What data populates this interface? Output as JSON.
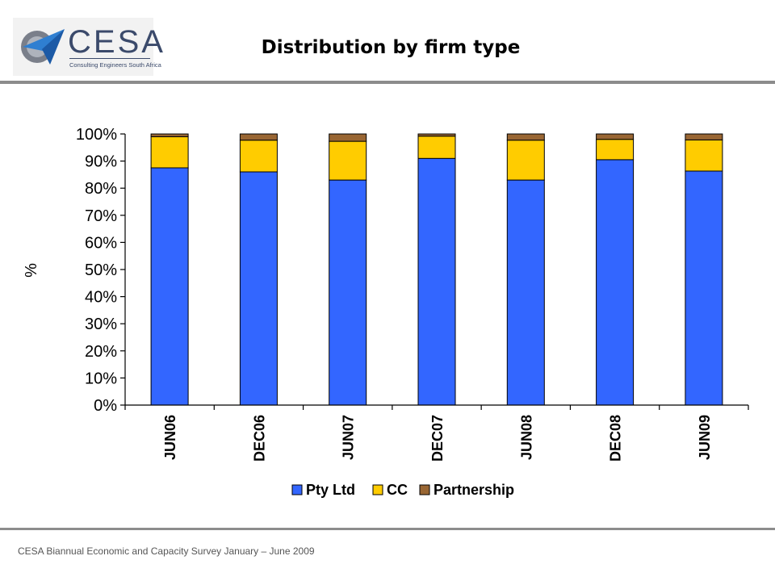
{
  "header": {
    "title": "Distribution by firm type",
    "logo": {
      "name": "CESA",
      "tagline": "Consulting Engineers South Africa"
    }
  },
  "footer": {
    "text": "CESA Biannual Economic and Capacity Survey January – June 2009"
  },
  "colors": {
    "pty_ltd": "#3366ff",
    "cc": "#ffcc00",
    "partnership": "#996633",
    "rule": "#8c8c8c"
  },
  "chart_data": {
    "type": "bar",
    "stacked": true,
    "categories": [
      "JUN06",
      "DEC06",
      "JUN07",
      "DEC07",
      "JUN08",
      "DEC08",
      "JUN09"
    ],
    "series": [
      {
        "name": "Pty Ltd",
        "values": [
          87.5,
          86,
          83,
          91,
          83,
          90.5,
          86.3
        ]
      },
      {
        "name": "CC",
        "values": [
          11.5,
          11.7,
          14.3,
          8.2,
          14.7,
          7.5,
          11.5
        ]
      },
      {
        "name": "Partnership",
        "values": [
          1,
          2.3,
          2.7,
          0.8,
          2.3,
          2,
          2.2
        ]
      }
    ],
    "ylabel": "%",
    "xlabel": "",
    "ylim": [
      0,
      100
    ],
    "yticks": [
      "0%",
      "10%",
      "20%",
      "30%",
      "40%",
      "50%",
      "60%",
      "70%",
      "80%",
      "90%",
      "100%"
    ],
    "legend": "bottom",
    "grid": false
  }
}
